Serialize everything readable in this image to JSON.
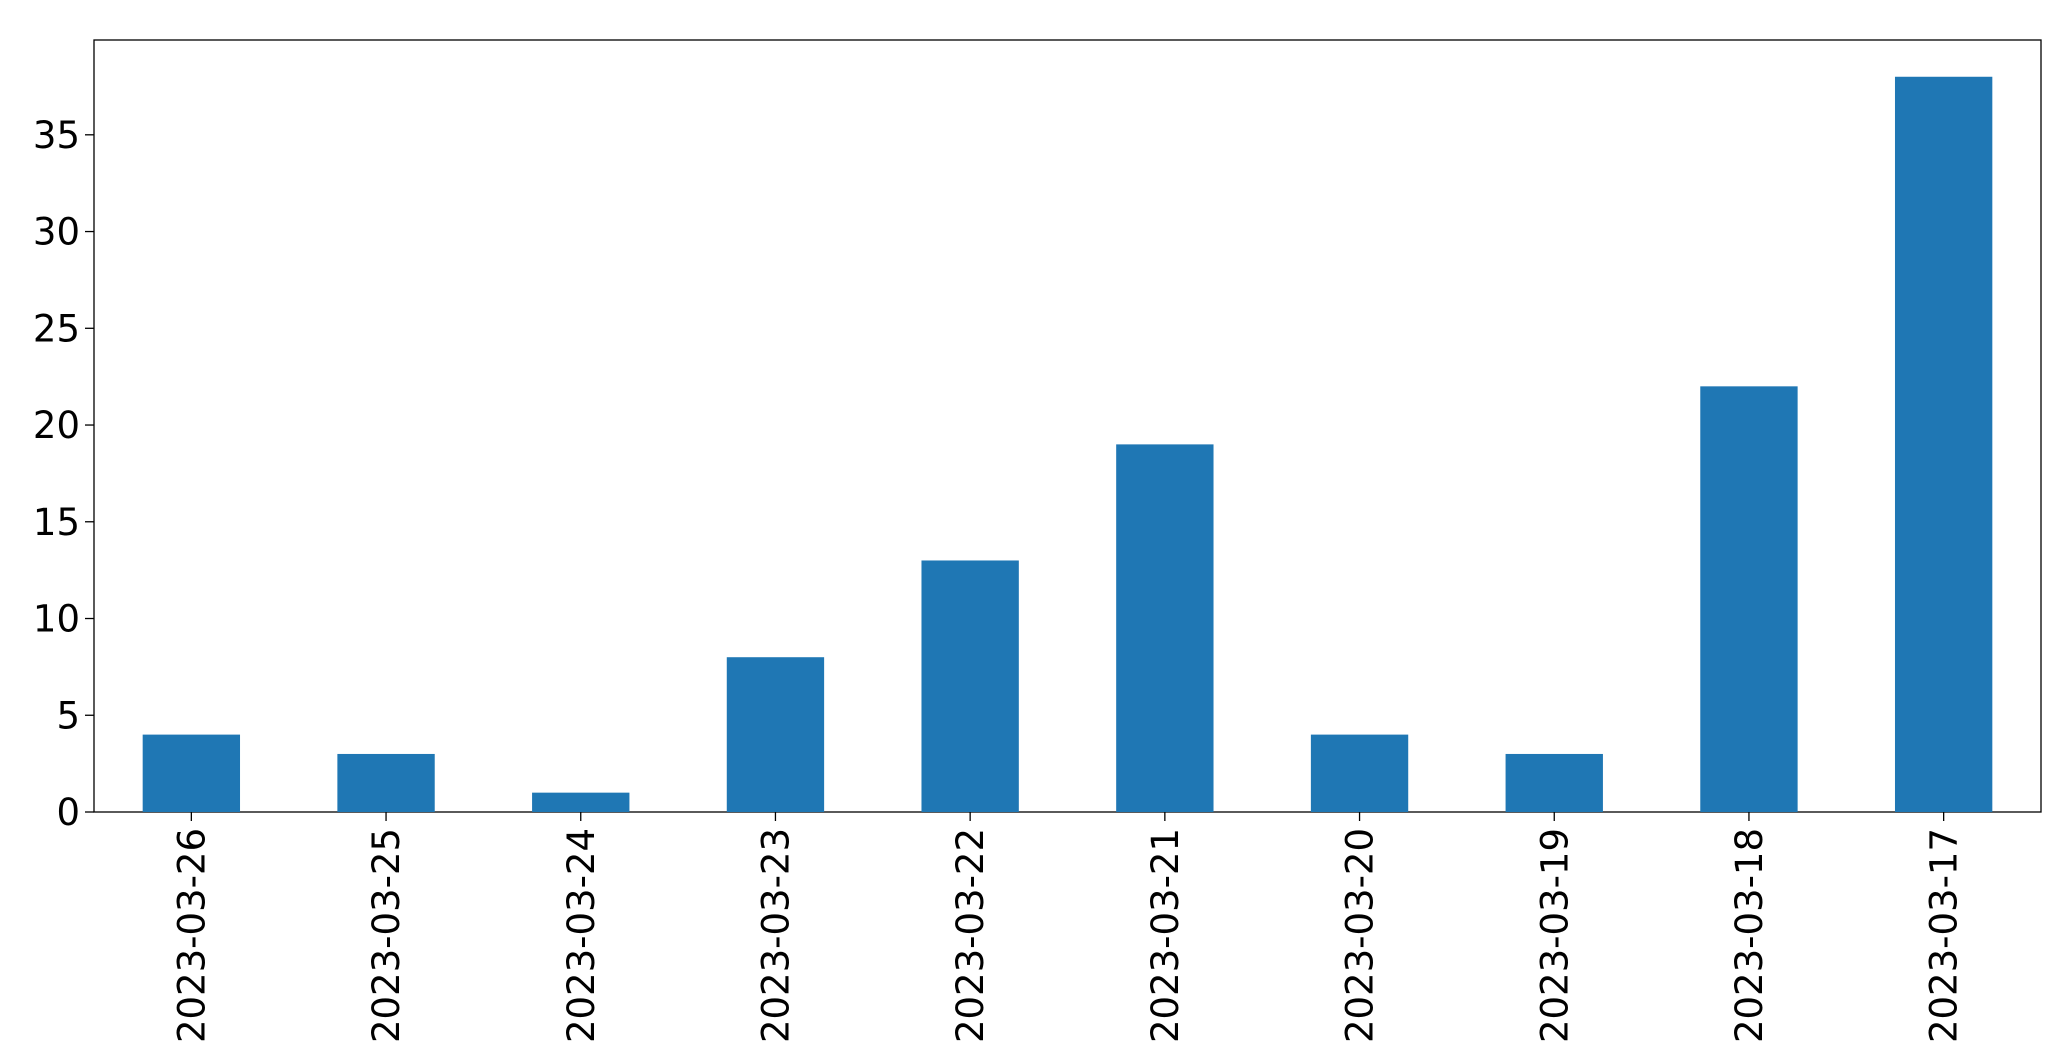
{
  "chart_data": {
    "type": "bar",
    "categories": [
      "2023-03-26",
      "2023-03-25",
      "2023-03-24",
      "2023-03-23",
      "2023-03-22",
      "2023-03-21",
      "2023-03-20",
      "2023-03-19",
      "2023-03-18",
      "2023-03-17"
    ],
    "values": [
      4,
      3,
      1,
      8,
      13,
      19,
      4,
      3,
      22,
      38
    ],
    "color": "#1f77b4",
    "ylim": [
      0,
      39.9
    ],
    "yticks": [
      0,
      5,
      10,
      15,
      20,
      25,
      30,
      35
    ],
    "grid": false
  }
}
